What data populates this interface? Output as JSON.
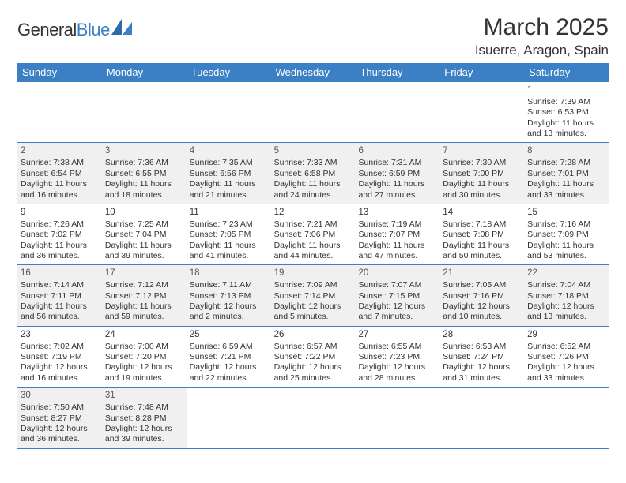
{
  "brand": {
    "name_a": "General",
    "name_b": "Blue"
  },
  "title": "March 2025",
  "location": "Isuerre, Aragon, Spain",
  "colors": {
    "header_bg": "#3b7fc4",
    "header_text": "#ffffff",
    "border": "#3b7fc4",
    "shade_bg": "#f0f0f0",
    "text": "#333333"
  },
  "day_names": [
    "Sunday",
    "Monday",
    "Tuesday",
    "Wednesday",
    "Thursday",
    "Friday",
    "Saturday"
  ],
  "weeks": [
    [
      {
        "empty": true
      },
      {
        "empty": true
      },
      {
        "empty": true
      },
      {
        "empty": true
      },
      {
        "empty": true
      },
      {
        "empty": true
      },
      {
        "n": "1",
        "sunrise": "7:39 AM",
        "sunset": "6:53 PM",
        "daylight": "11 hours and 13 minutes."
      }
    ],
    [
      {
        "n": "2",
        "shade": true,
        "sunrise": "7:38 AM",
        "sunset": "6:54 PM",
        "daylight": "11 hours and 16 minutes."
      },
      {
        "n": "3",
        "shade": true,
        "sunrise": "7:36 AM",
        "sunset": "6:55 PM",
        "daylight": "11 hours and 18 minutes."
      },
      {
        "n": "4",
        "shade": true,
        "sunrise": "7:35 AM",
        "sunset": "6:56 PM",
        "daylight": "11 hours and 21 minutes."
      },
      {
        "n": "5",
        "shade": true,
        "sunrise": "7:33 AM",
        "sunset": "6:58 PM",
        "daylight": "11 hours and 24 minutes."
      },
      {
        "n": "6",
        "shade": true,
        "sunrise": "7:31 AM",
        "sunset": "6:59 PM",
        "daylight": "11 hours and 27 minutes."
      },
      {
        "n": "7",
        "shade": true,
        "sunrise": "7:30 AM",
        "sunset": "7:00 PM",
        "daylight": "11 hours and 30 minutes."
      },
      {
        "n": "8",
        "shade": true,
        "sunrise": "7:28 AM",
        "sunset": "7:01 PM",
        "daylight": "11 hours and 33 minutes."
      }
    ],
    [
      {
        "n": "9",
        "sunrise": "7:26 AM",
        "sunset": "7:02 PM",
        "daylight": "11 hours and 36 minutes."
      },
      {
        "n": "10",
        "sunrise": "7:25 AM",
        "sunset": "7:04 PM",
        "daylight": "11 hours and 39 minutes."
      },
      {
        "n": "11",
        "sunrise": "7:23 AM",
        "sunset": "7:05 PM",
        "daylight": "11 hours and 41 minutes."
      },
      {
        "n": "12",
        "sunrise": "7:21 AM",
        "sunset": "7:06 PM",
        "daylight": "11 hours and 44 minutes."
      },
      {
        "n": "13",
        "sunrise": "7:19 AM",
        "sunset": "7:07 PM",
        "daylight": "11 hours and 47 minutes."
      },
      {
        "n": "14",
        "sunrise": "7:18 AM",
        "sunset": "7:08 PM",
        "daylight": "11 hours and 50 minutes."
      },
      {
        "n": "15",
        "sunrise": "7:16 AM",
        "sunset": "7:09 PM",
        "daylight": "11 hours and 53 minutes."
      }
    ],
    [
      {
        "n": "16",
        "shade": true,
        "sunrise": "7:14 AM",
        "sunset": "7:11 PM",
        "daylight": "11 hours and 56 minutes."
      },
      {
        "n": "17",
        "shade": true,
        "sunrise": "7:12 AM",
        "sunset": "7:12 PM",
        "daylight": "11 hours and 59 minutes."
      },
      {
        "n": "18",
        "shade": true,
        "sunrise": "7:11 AM",
        "sunset": "7:13 PM",
        "daylight": "12 hours and 2 minutes."
      },
      {
        "n": "19",
        "shade": true,
        "sunrise": "7:09 AM",
        "sunset": "7:14 PM",
        "daylight": "12 hours and 5 minutes."
      },
      {
        "n": "20",
        "shade": true,
        "sunrise": "7:07 AM",
        "sunset": "7:15 PM",
        "daylight": "12 hours and 7 minutes."
      },
      {
        "n": "21",
        "shade": true,
        "sunrise": "7:05 AM",
        "sunset": "7:16 PM",
        "daylight": "12 hours and 10 minutes."
      },
      {
        "n": "22",
        "shade": true,
        "sunrise": "7:04 AM",
        "sunset": "7:18 PM",
        "daylight": "12 hours and 13 minutes."
      }
    ],
    [
      {
        "n": "23",
        "sunrise": "7:02 AM",
        "sunset": "7:19 PM",
        "daylight": "12 hours and 16 minutes."
      },
      {
        "n": "24",
        "sunrise": "7:00 AM",
        "sunset": "7:20 PM",
        "daylight": "12 hours and 19 minutes."
      },
      {
        "n": "25",
        "sunrise": "6:59 AM",
        "sunset": "7:21 PM",
        "daylight": "12 hours and 22 minutes."
      },
      {
        "n": "26",
        "sunrise": "6:57 AM",
        "sunset": "7:22 PM",
        "daylight": "12 hours and 25 minutes."
      },
      {
        "n": "27",
        "sunrise": "6:55 AM",
        "sunset": "7:23 PM",
        "daylight": "12 hours and 28 minutes."
      },
      {
        "n": "28",
        "sunrise": "6:53 AM",
        "sunset": "7:24 PM",
        "daylight": "12 hours and 31 minutes."
      },
      {
        "n": "29",
        "sunrise": "6:52 AM",
        "sunset": "7:26 PM",
        "daylight": "12 hours and 33 minutes."
      }
    ],
    [
      {
        "n": "30",
        "shade": true,
        "sunrise": "7:50 AM",
        "sunset": "8:27 PM",
        "daylight": "12 hours and 36 minutes."
      },
      {
        "n": "31",
        "shade": true,
        "sunrise": "7:48 AM",
        "sunset": "8:28 PM",
        "daylight": "12 hours and 39 minutes."
      },
      {
        "empty": true
      },
      {
        "empty": true
      },
      {
        "empty": true
      },
      {
        "empty": true
      },
      {
        "empty": true
      }
    ]
  ],
  "labels": {
    "sunrise": "Sunrise:",
    "sunset": "Sunset:",
    "daylight": "Daylight:"
  }
}
